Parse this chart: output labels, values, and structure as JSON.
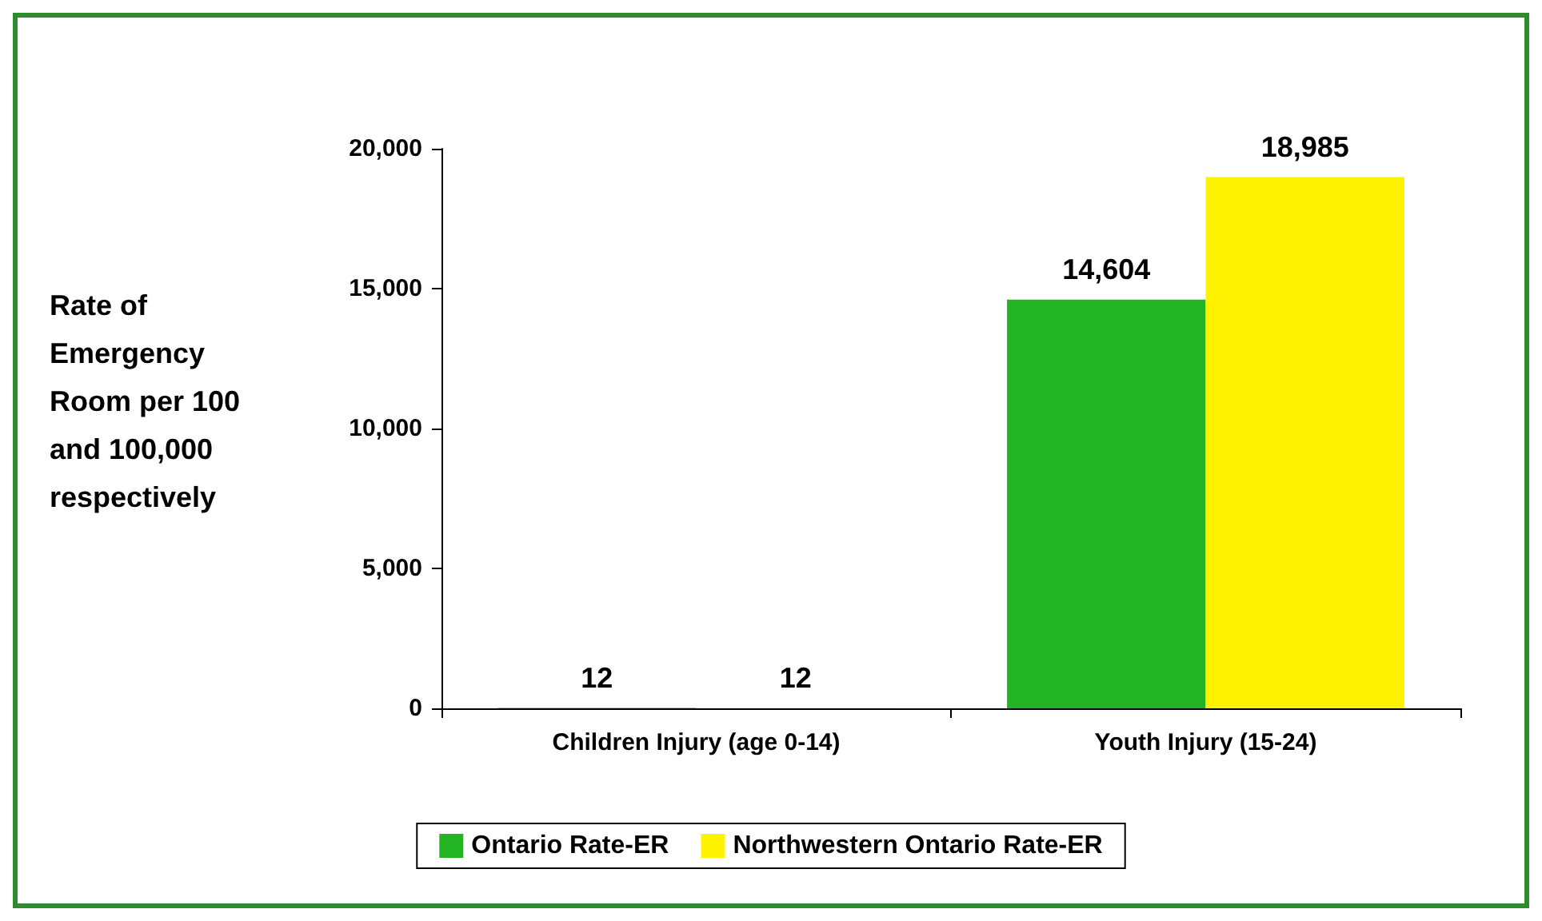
{
  "chart_data": {
    "type": "bar",
    "ylabel": "Rate of Emergency Room per 100 and 100,000 respectively",
    "categories": [
      "Children Injury (age 0-14)",
      "Youth Injury (15-24)"
    ],
    "series": [
      {
        "name": "Ontario Rate-ER",
        "color": "#22b422",
        "values": [
          12,
          14604
        ],
        "value_labels": [
          "12",
          "14,604"
        ]
      },
      {
        "name": "Northwestern Ontario Rate-ER",
        "color": "#fff200",
        "values": [
          12,
          18985
        ],
        "value_labels": [
          "12",
          "18,985"
        ]
      }
    ],
    "ylim": [
      0,
      20000
    ],
    "yticks": [
      {
        "value": 0,
        "label": "0"
      },
      {
        "value": 5000,
        "label": "5,000"
      },
      {
        "value": 10000,
        "label": "10,000"
      },
      {
        "value": 15000,
        "label": "15,000"
      },
      {
        "value": 20000,
        "label": "20,000"
      }
    ],
    "grid": false,
    "legend": "bottom"
  }
}
